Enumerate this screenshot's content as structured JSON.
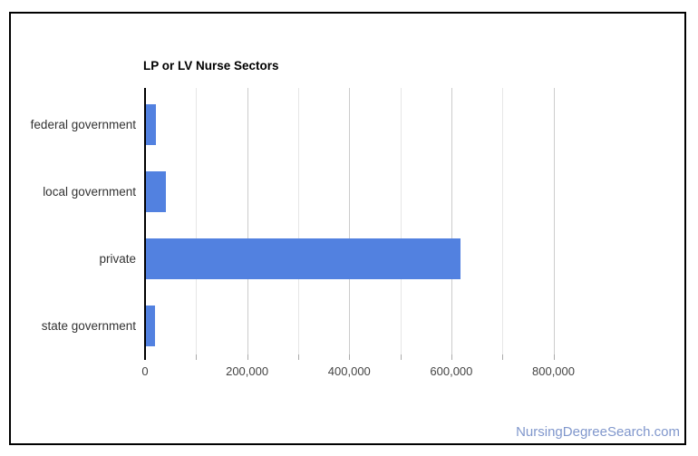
{
  "page": {
    "watermark": "NursingDegreeSearch.com"
  },
  "chart_data": {
    "type": "bar",
    "orientation": "horizontal",
    "title": "LP or LV Nurse Sectors",
    "categories": [
      "federal government",
      "local government",
      "private",
      "state government"
    ],
    "values": [
      20000,
      39000,
      617000,
      18000
    ],
    "xlim": [
      0,
      800000
    ],
    "x_ticks": [
      {
        "value": 0,
        "label": "0"
      },
      {
        "value": 200000,
        "label": "200,000"
      },
      {
        "value": 400000,
        "label": "400,000"
      },
      {
        "value": 600000,
        "label": "600,000"
      },
      {
        "value": 800000,
        "label": "800,000"
      }
    ],
    "minor_gridline_step": 100000,
    "grid": true,
    "legend": "none",
    "colors": {
      "bar": "#5281e0",
      "major_gridline": "#cccccc",
      "minor_gridline": "#e6e6e6",
      "axis_line": "#000000",
      "title_text": "#000000",
      "category_text": "#333333",
      "tick_text": "#444444",
      "watermark_text": "#8097cc",
      "border": "#000000",
      "background": "#ffffff"
    }
  }
}
